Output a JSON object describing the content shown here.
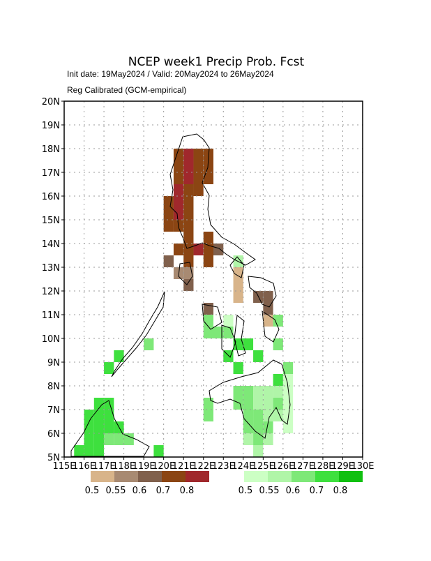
{
  "header": {
    "title": "NCEP week1 Precip Prob. Fcst",
    "subtitle": "Init date: 19May2024 / Valid: 20May2024 to 26May2024",
    "note": "Reg Calibrated (GCM-empirical)"
  },
  "map": {
    "xlim": [
      115,
      130
    ],
    "ylim": [
      5,
      20
    ],
    "xticks": [
      {
        "value": 115,
        "label": "115E"
      },
      {
        "value": 116,
        "label": "116E"
      },
      {
        "value": 117,
        "label": "117E"
      },
      {
        "value": 118,
        "label": "118E"
      },
      {
        "value": 119,
        "label": "119E"
      },
      {
        "value": 120,
        "label": "120E"
      },
      {
        "value": 121,
        "label": "121E"
      },
      {
        "value": 122,
        "label": "122E"
      },
      {
        "value": 123,
        "label": "123E"
      },
      {
        "value": 124,
        "label": "124E"
      },
      {
        "value": 125,
        "label": "125E"
      },
      {
        "value": 126,
        "label": "126E"
      },
      {
        "value": 127,
        "label": "127E"
      },
      {
        "value": 128,
        "label": "128E"
      },
      {
        "value": 129,
        "label": "129E"
      },
      {
        "value": 130,
        "label": "130E"
      }
    ],
    "yticks": [
      {
        "value": 5,
        "label": "5N"
      },
      {
        "value": 6,
        "label": "6N"
      },
      {
        "value": 7,
        "label": "7N"
      },
      {
        "value": 8,
        "label": "8N"
      },
      {
        "value": 9,
        "label": "9N"
      },
      {
        "value": 10,
        "label": "10N"
      },
      {
        "value": 11,
        "label": "11N"
      },
      {
        "value": 12,
        "label": "12N"
      },
      {
        "value": 13,
        "label": "13N"
      },
      {
        "value": 14,
        "label": "14N"
      },
      {
        "value": 15,
        "label": "15N"
      },
      {
        "value": 16,
        "label": "16N"
      },
      {
        "value": 17,
        "label": "17N"
      },
      {
        "value": 18,
        "label": "18N"
      },
      {
        "value": 19,
        "label": "19N"
      },
      {
        "value": 20,
        "label": "20N"
      }
    ],
    "grid": true,
    "cell_size": 0.5,
    "dry_legend": {
      "bins": [
        0.5,
        0.55,
        0.6,
        0.7,
        0.8
      ],
      "colors": [
        "#d8b48a",
        "#a88a72",
        "#80604c",
        "#8b4513",
        "#a0282c"
      ]
    },
    "wet_legend": {
      "bins": [
        0.5,
        0.55,
        0.6,
        0.7,
        0.8
      ],
      "colors": [
        "#ccffc4",
        "#b0f5a8",
        "#7ee878",
        "#3ee03e",
        "#10c010"
      ]
    },
    "dry": [
      {
        "lon": 120.5,
        "lat": 17.5,
        "prob": 0.7
      },
      {
        "lon": 121,
        "lat": 17.5,
        "prob": 0.8
      },
      {
        "lon": 121.5,
        "lat": 17.5,
        "prob": 0.7
      },
      {
        "lon": 122,
        "lat": 17.5,
        "prob": 0.7
      },
      {
        "lon": 120.5,
        "lat": 17,
        "prob": 0.7
      },
      {
        "lon": 121,
        "lat": 17,
        "prob": 0.8
      },
      {
        "lon": 121.5,
        "lat": 17,
        "prob": 0.7
      },
      {
        "lon": 122,
        "lat": 17,
        "prob": 0.7
      },
      {
        "lon": 120.5,
        "lat": 16.5,
        "prob": 0.7
      },
      {
        "lon": 121,
        "lat": 16.5,
        "prob": 0.8
      },
      {
        "lon": 121.5,
        "lat": 16.5,
        "prob": 0.7
      },
      {
        "lon": 122,
        "lat": 16.5,
        "prob": 0.7
      },
      {
        "lon": 120.5,
        "lat": 16,
        "prob": 0.8
      },
      {
        "lon": 121,
        "lat": 16,
        "prob": 0.7
      },
      {
        "lon": 121.5,
        "lat": 16,
        "prob": 0.7
      },
      {
        "lon": 120,
        "lat": 15.5,
        "prob": 0.7
      },
      {
        "lon": 120.5,
        "lat": 15.5,
        "prob": 0.8
      },
      {
        "lon": 121,
        "lat": 15.5,
        "prob": 0.7
      },
      {
        "lon": 120,
        "lat": 15,
        "prob": 0.7
      },
      {
        "lon": 120.5,
        "lat": 15,
        "prob": 0.8
      },
      {
        "lon": 121,
        "lat": 15,
        "prob": 0.7
      },
      {
        "lon": 120,
        "lat": 14.5,
        "prob": 0.7
      },
      {
        "lon": 120.5,
        "lat": 14.5,
        "prob": 0.7
      },
      {
        "lon": 121,
        "lat": 14.5,
        "prob": 0.7
      },
      {
        "lon": 121,
        "lat": 14,
        "prob": 0.7
      },
      {
        "lon": 122,
        "lat": 14,
        "prob": 0.7
      },
      {
        "lon": 120.5,
        "lat": 13.5,
        "prob": 0.7
      },
      {
        "lon": 121,
        "lat": 13.5,
        "prob": 0.7
      },
      {
        "lon": 121.5,
        "lat": 13.5,
        "prob": 0.8
      },
      {
        "lon": 122,
        "lat": 13.5,
        "prob": 0.7
      },
      {
        "lon": 122.5,
        "lat": 13.5,
        "prob": 0.6
      },
      {
        "lon": 120,
        "lat": 13,
        "prob": 0.6
      },
      {
        "lon": 121,
        "lat": 13,
        "prob": 0.7
      },
      {
        "lon": 122,
        "lat": 13,
        "prob": 0.7
      },
      {
        "lon": 120.5,
        "lat": 12.5,
        "prob": 0.55
      },
      {
        "lon": 121,
        "lat": 12.5,
        "prob": 0.55
      },
      {
        "lon": 123.5,
        "lat": 12.5,
        "prob": 0.5
      },
      {
        "lon": 121,
        "lat": 12,
        "prob": 0.6
      },
      {
        "lon": 123.5,
        "lat": 12,
        "prob": 0.5
      },
      {
        "lon": 123.5,
        "lat": 11.5,
        "prob": 0.5
      },
      {
        "lon": 124.5,
        "lat": 11.5,
        "prob": 0.6
      },
      {
        "lon": 125,
        "lat": 11.5,
        "prob": 0.6
      },
      {
        "lon": 122,
        "lat": 11,
        "prob": 0.6
      },
      {
        "lon": 125,
        "lat": 11,
        "prob": 0.6
      },
      {
        "lon": 125,
        "lat": 10.5,
        "prob": 0.5
      }
    ],
    "wet": [
      {
        "lon": 123.5,
        "lat": 13,
        "prob": 0.55
      },
      {
        "lon": 122,
        "lat": 10.5,
        "prob": 0.6
      },
      {
        "lon": 123,
        "lat": 10.5,
        "prob": 0.5
      },
      {
        "lon": 125.5,
        "lat": 10.5,
        "prob": 0.6
      },
      {
        "lon": 122,
        "lat": 10,
        "prob": 0.6
      },
      {
        "lon": 122.5,
        "lat": 10,
        "prob": 0.6
      },
      {
        "lon": 123,
        "lat": 10,
        "prob": 0.6
      },
      {
        "lon": 123.5,
        "lat": 9.5,
        "prob": 0.7
      },
      {
        "lon": 124,
        "lat": 9.5,
        "prob": 0.7
      },
      {
        "lon": 125.5,
        "lat": 9.5,
        "prob": 0.6
      },
      {
        "lon": 119,
        "lat": 9.5,
        "prob": 0.6
      },
      {
        "lon": 123,
        "lat": 9,
        "prob": 0.7
      },
      {
        "lon": 124.5,
        "lat": 9,
        "prob": 0.7
      },
      {
        "lon": 117.5,
        "lat": 9,
        "prob": 0.7
      },
      {
        "lon": 123.5,
        "lat": 8.5,
        "prob": 0.7
      },
      {
        "lon": 126,
        "lat": 8.5,
        "prob": 0.6
      },
      {
        "lon": 117,
        "lat": 8.5,
        "prob": 0.7
      },
      {
        "lon": 125.5,
        "lat": 8,
        "prob": 0.7
      },
      {
        "lon": 126,
        "lat": 8,
        "prob": 0.5
      },
      {
        "lon": 123.5,
        "lat": 7.5,
        "prob": 0.6
      },
      {
        "lon": 124,
        "lat": 7.5,
        "prob": 0.6
      },
      {
        "lon": 124.5,
        "lat": 7.5,
        "prob": 0.55
      },
      {
        "lon": 125,
        "lat": 7.5,
        "prob": 0.55
      },
      {
        "lon": 125.5,
        "lat": 7.5,
        "prob": 0.55
      },
      {
        "lon": 126,
        "lat": 7.5,
        "prob": 0.5
      },
      {
        "lon": 122,
        "lat": 7,
        "prob": 0.6
      },
      {
        "lon": 123.5,
        "lat": 7,
        "prob": 0.6
      },
      {
        "lon": 124,
        "lat": 7,
        "prob": 0.6
      },
      {
        "lon": 124.5,
        "lat": 7,
        "prob": 0.55
      },
      {
        "lon": 125,
        "lat": 7,
        "prob": 0.55
      },
      {
        "lon": 125.5,
        "lat": 7,
        "prob": 0.6
      },
      {
        "lon": 126,
        "lat": 7,
        "prob": 0.5
      },
      {
        "lon": 116.5,
        "lat": 7,
        "prob": 0.7
      },
      {
        "lon": 117,
        "lat": 7,
        "prob": 0.7
      },
      {
        "lon": 122,
        "lat": 6.5,
        "prob": 0.6
      },
      {
        "lon": 124,
        "lat": 6.5,
        "prob": 0.6
      },
      {
        "lon": 124.5,
        "lat": 6.5,
        "prob": 0.6
      },
      {
        "lon": 125,
        "lat": 6.5,
        "prob": 0.55
      },
      {
        "lon": 125.5,
        "lat": 6.5,
        "prob": 0.55
      },
      {
        "lon": 126,
        "lat": 6.5,
        "prob": 0.5
      },
      {
        "lon": 116,
        "lat": 6.5,
        "prob": 0.7
      },
      {
        "lon": 116.5,
        "lat": 6.5,
        "prob": 0.7
      },
      {
        "lon": 117,
        "lat": 6.5,
        "prob": 0.7
      },
      {
        "lon": 124,
        "lat": 6,
        "prob": 0.6
      },
      {
        "lon": 124.5,
        "lat": 6,
        "prob": 0.6
      },
      {
        "lon": 125,
        "lat": 6,
        "prob": 0.6
      },
      {
        "lon": 126,
        "lat": 6,
        "prob": 0.5
      },
      {
        "lon": 116,
        "lat": 6,
        "prob": 0.7
      },
      {
        "lon": 116.5,
        "lat": 6,
        "prob": 0.7
      },
      {
        "lon": 117,
        "lat": 6,
        "prob": 0.7
      },
      {
        "lon": 117.5,
        "lat": 6,
        "prob": 0.7
      },
      {
        "lon": 124,
        "lat": 5.5,
        "prob": 0.55
      },
      {
        "lon": 124.5,
        "lat": 5.5,
        "prob": 0.6
      },
      {
        "lon": 125,
        "lat": 5.5,
        "prob": 0.55
      },
      {
        "lon": 116,
        "lat": 5.5,
        "prob": 0.7
      },
      {
        "lon": 116.5,
        "lat": 5.5,
        "prob": 0.7
      },
      {
        "lon": 117,
        "lat": 5.5,
        "prob": 0.6
      },
      {
        "lon": 117.5,
        "lat": 5.5,
        "prob": 0.6
      },
      {
        "lon": 118,
        "lat": 5.5,
        "prob": 0.6
      },
      {
        "lon": 124.5,
        "lat": 5,
        "prob": 0.55
      },
      {
        "lon": 115.5,
        "lat": 5,
        "prob": 0.7
      },
      {
        "lon": 116,
        "lat": 5,
        "prob": 0.7
      },
      {
        "lon": 116.5,
        "lat": 5,
        "prob": 0.7
      },
      {
        "lon": 119.5,
        "lat": 5,
        "prob": 0.7
      }
    ]
  }
}
